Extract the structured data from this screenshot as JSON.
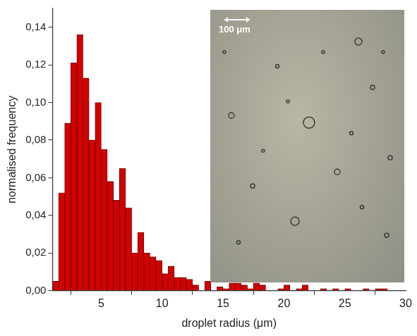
{
  "chart_data": {
    "type": "histogram",
    "x_label": "droplet radius (μm)",
    "y_label": "normalised frequency",
    "annotations": [
      "100 μm"
    ],
    "bins": [
      1.0,
      1.5,
      2.0,
      2.5,
      3.0,
      3.5,
      4.0,
      4.5,
      5.0,
      5.5,
      6.0,
      6.5,
      7.0,
      7.5,
      8.0,
      8.5,
      9.0,
      9.5,
      10.0,
      10.5,
      11.0,
      11.5,
      12.0,
      12.5,
      13.0,
      13.5,
      14.0,
      14.5,
      15.0,
      15.5,
      16.0,
      16.5,
      17.0,
      17.5,
      18.0,
      18.5,
      19.0,
      19.5,
      20.0,
      20.5,
      21.0,
      21.5,
      22.0,
      22.5,
      23.0,
      23.5,
      24.0,
      24.5,
      25.0,
      25.5,
      26.0,
      26.5,
      27.0,
      27.5,
      28.0,
      28.5
    ],
    "values": [
      0.005,
      0.052,
      0.089,
      0.121,
      0.136,
      0.113,
      0.08,
      0.1,
      0.075,
      0.058,
      0.048,
      0.065,
      0.044,
      0.02,
      0.031,
      0.02,
      0.018,
      0.016,
      0.009,
      0.013,
      0.007,
      0.007,
      0.006,
      0.003,
      0.0,
      0.005,
      0.0,
      0.002,
      0.001,
      0.004,
      0.004,
      0.003,
      0.001,
      0.004,
      0.003,
      0.0,
      0.0,
      0.001,
      0.003,
      0.0,
      0.001,
      0.003,
      0.0,
      0.0,
      0.001,
      0.0,
      0.001,
      0.0,
      0.001,
      0.0,
      0.0,
      0.001,
      0.0,
      0.001,
      0.001
    ],
    "color": "#d40000",
    "xlim": [
      1,
      30
    ],
    "xticks": [
      5,
      10,
      15,
      20,
      25,
      30
    ],
    "ylim": [
      0,
      0.15
    ],
    "yticks": [
      {
        "value": 0,
        "label": "0,00"
      },
      {
        "value": 0.02,
        "label": "0,02"
      },
      {
        "value": 0.04,
        "label": "0,04"
      },
      {
        "value": 0.06,
        "label": "0,06"
      },
      {
        "value": 0.08,
        "label": "0,08"
      },
      {
        "value": 0.1,
        "label": "0,10"
      },
      {
        "value": 0.12,
        "label": "0,12"
      },
      {
        "value": 0.14,
        "label": "0,14"
      }
    ],
    "grid": false,
    "legend": false
  }
}
